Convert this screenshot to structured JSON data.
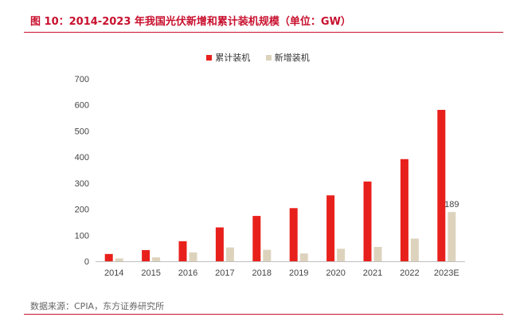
{
  "figure": {
    "title": "图 10：2014-2023 年我国光伏新增和累计装机规模（单位：GW）",
    "source": "数据来源：CPIA，东方证券研究所"
  },
  "colors": {
    "accent": "#c8102e",
    "cumulative": "#e8201c",
    "new": "#ddd3bd"
  },
  "chart_data": {
    "type": "bar",
    "categories": [
      "2014",
      "2015",
      "2016",
      "2017",
      "2018",
      "2019",
      "2020",
      "2021",
      "2022",
      "2023E"
    ],
    "series": [
      {
        "name": "累计装机",
        "values": [
          28,
          43,
          77,
          130,
          174,
          204,
          253,
          306,
          392,
          581
        ]
      },
      {
        "name": "新增装机",
        "values": [
          11,
          15,
          34,
          53,
          44,
          30,
          48,
          55,
          87,
          189
        ]
      }
    ],
    "ylim": [
      0,
      700
    ],
    "yticks": [
      0,
      100,
      200,
      300,
      400,
      500,
      600,
      700
    ],
    "data_labels": [
      {
        "series": 1,
        "index": 9,
        "text": "189"
      }
    ],
    "legend": "top-center",
    "grid": false
  }
}
